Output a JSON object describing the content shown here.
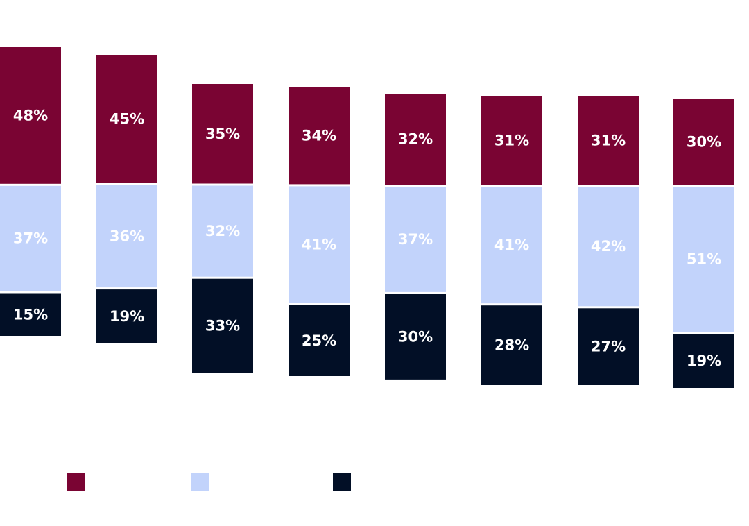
{
  "chart_data": {
    "type": "bar",
    "stacked": true,
    "categories": [
      "",
      "",
      "",
      "",
      "",
      "",
      "",
      ""
    ],
    "series": [
      {
        "name": "",
        "color": "#7a0433",
        "values": [
          48,
          45,
          35,
          34,
          32,
          31,
          31,
          30
        ]
      },
      {
        "name": "",
        "color": "#c2d3fb",
        "values": [
          37,
          36,
          32,
          41,
          37,
          41,
          42,
          51
        ]
      },
      {
        "name": "",
        "color": "#020f26",
        "values": [
          15,
          19,
          33,
          25,
          30,
          28,
          27,
          19
        ]
      }
    ],
    "value_labels": [
      [
        "48%",
        "45%",
        "35%",
        "34%",
        "32%",
        "31%",
        "31%",
        "30%"
      ],
      [
        "37%",
        "36%",
        "32%",
        "41%",
        "37%",
        "41%",
        "42%",
        "51%"
      ],
      [
        "15%",
        "19%",
        "33%",
        "25%",
        "30%",
        "28%",
        "27%",
        "19%"
      ]
    ],
    "title": "",
    "xlabel": "",
    "ylabel": "",
    "grid": false,
    "legend_position": "bottom-left"
  }
}
